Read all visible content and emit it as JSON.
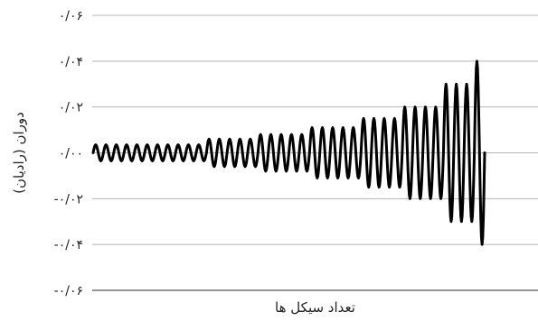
{
  "chart_data": {
    "type": "line",
    "title": "",
    "xlabel": "تعداد سیکل ها",
    "ylabel": "دوران (رادیان)",
    "ylim": [
      -0.06,
      0.06
    ],
    "yticks": [
      0.06,
      0.04,
      0.02,
      0.0,
      -0.02,
      -0.04,
      -0.06
    ],
    "ytick_labels": [
      "۰/۰۶",
      "۰/۰۴",
      "۰/۰۲",
      "۰/۰۰",
      "-۰/۰۲",
      "-۰/۰۴",
      "-۰/۰۶"
    ],
    "grid": "horizontal",
    "legend": "none",
    "series": [
      {
        "color": "#000000",
        "cycle_groups": [
          {
            "cycles": 11,
            "amplitude": 0.0035
          },
          {
            "cycles": 5,
            "amplitude": 0.006
          },
          {
            "cycles": 5,
            "amplitude": 0.008
          },
          {
            "cycles": 5,
            "amplitude": 0.011
          },
          {
            "cycles": 4,
            "amplitude": 0.015
          },
          {
            "cycles": 4,
            "amplitude": 0.02
          },
          {
            "cycles": 3,
            "amplitude": 0.03
          },
          {
            "cycles": 1,
            "amplitude": 0.04
          }
        ]
      }
    ]
  }
}
